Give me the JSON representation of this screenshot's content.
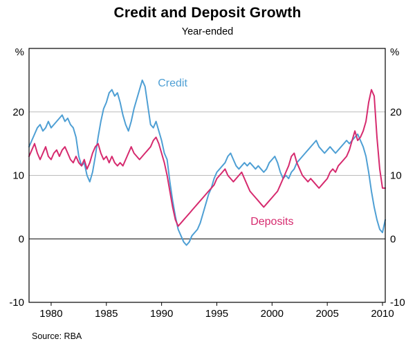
{
  "chart_data": {
    "type": "line",
    "title": "Credit and Deposit Growth",
    "subtitle": "Year-ended",
    "source": "Source: RBA",
    "unit_label": "%",
    "grid": "horizontal",
    "legend_position": "inline-annotations",
    "xlim": [
      1978,
      2010.25
    ],
    "ylim": [
      -10,
      30
    ],
    "yticks": [
      -10,
      0,
      10,
      20
    ],
    "grid_y": [
      10,
      20
    ],
    "zero_line": 0,
    "xticks": [
      1980,
      1985,
      1990,
      1995,
      2000,
      2005,
      2010
    ],
    "x": {
      "start": 1978,
      "step": 0.25,
      "count": 130
    },
    "series": [
      {
        "name": "Credit",
        "color": "#4e9fd4",
        "label_x": 1991,
        "label_y": 24,
        "values": [
          14.5,
          15.5,
          16.5,
          17.5,
          18,
          17,
          17.5,
          18.5,
          17.5,
          18,
          18.5,
          19,
          19.5,
          18.5,
          19,
          18,
          17.5,
          16,
          13,
          11.5,
          12,
          10,
          9,
          10.5,
          13,
          16,
          18.5,
          20.5,
          21.5,
          23,
          23.5,
          22.5,
          23,
          21.5,
          19.5,
          18,
          17,
          18.5,
          20.5,
          22,
          23.5,
          25,
          24,
          21,
          18,
          17.5,
          18.5,
          17,
          15.5,
          13.5,
          12.5,
          9,
          6,
          3.5,
          1.5,
          0.5,
          -0.5,
          -1,
          -0.5,
          0.5,
          1,
          1.5,
          2.5,
          4,
          5.5,
          7,
          8,
          9.5,
          10.5,
          11,
          11.5,
          12,
          13,
          13.5,
          12.5,
          11.5,
          11,
          11.5,
          12,
          11.5,
          12,
          11.5,
          11,
          11.5,
          11,
          10.5,
          11,
          12,
          12.5,
          13,
          12,
          10.5,
          9.5,
          10,
          9.5,
          10.5,
          11,
          12,
          12.5,
          13,
          13.5,
          14,
          14.5,
          15,
          15.5,
          14.5,
          14,
          13.5,
          14,
          14.5,
          14,
          13.5,
          14,
          14.5,
          15,
          15.5,
          15,
          15.5,
          16,
          16.5,
          15.5,
          14.5,
          13,
          10.5,
          7.5,
          5,
          3,
          1.5,
          1,
          3
        ]
      },
      {
        "name": "Deposits",
        "color": "#d62a6e",
        "label_x": 2000,
        "label_y": 2.2,
        "values": [
          13,
          14,
          15,
          13.5,
          12.5,
          13.5,
          14.5,
          13,
          12.5,
          13.5,
          14,
          13,
          14,
          14.5,
          13.5,
          12.5,
          12,
          13,
          12,
          11.5,
          12.5,
          11,
          12,
          13.5,
          14.5,
          15,
          13.5,
          12.5,
          13,
          12,
          13,
          12,
          11.5,
          12,
          11.5,
          12.5,
          13.5,
          14.5,
          13.5,
          13,
          12.5,
          13,
          13.5,
          14,
          14.5,
          15.5,
          16,
          15,
          13.5,
          12,
          10,
          7.5,
          5,
          3,
          2,
          2.5,
          3,
          3.5,
          4,
          4.5,
          5,
          5.5,
          6,
          6.5,
          7,
          7.5,
          8,
          8.5,
          9.5,
          10,
          10.5,
          11,
          10,
          9.5,
          9,
          9.5,
          10,
          10.5,
          9.5,
          8.5,
          7.5,
          7,
          6.5,
          6,
          5.5,
          5,
          5.5,
          6,
          6.5,
          7,
          7.5,
          8.5,
          9.5,
          10.5,
          11.5,
          13,
          13.5,
          12,
          11,
          10,
          9.5,
          9,
          9.5,
          9,
          8.5,
          8,
          8.5,
          9,
          9.5,
          10.5,
          11,
          10.5,
          11.5,
          12,
          12.5,
          13,
          14,
          15.5,
          17,
          15.5,
          16,
          17,
          18.5,
          21.5,
          23.5,
          22.5,
          16,
          11,
          8,
          8
        ]
      }
    ]
  }
}
